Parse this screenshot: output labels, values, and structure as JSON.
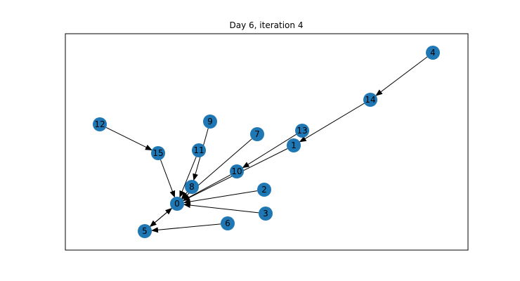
{
  "figure": {
    "title": "Day 6, iteration 4"
  },
  "graph": {
    "node_color": "#1f77b4",
    "edge_color": "#000000",
    "directed": true,
    "nodes": [
      "0",
      "1",
      "2",
      "3",
      "4",
      "5",
      "6",
      "7",
      "8",
      "9",
      "10",
      "11",
      "12",
      "13",
      "14",
      "15"
    ],
    "edges": [
      [
        "4",
        "14"
      ],
      [
        "14",
        "1"
      ],
      [
        "1",
        "0"
      ],
      [
        "13",
        "10"
      ],
      [
        "10",
        "0"
      ],
      [
        "7",
        "0"
      ],
      [
        "9",
        "8"
      ],
      [
        "11",
        "0"
      ],
      [
        "8",
        "0"
      ],
      [
        "12",
        "15"
      ],
      [
        "15",
        "0"
      ],
      [
        "2",
        "0"
      ],
      [
        "3",
        "0"
      ],
      [
        "0",
        "5"
      ],
      [
        "5",
        "0"
      ],
      [
        "6",
        "5"
      ]
    ]
  }
}
